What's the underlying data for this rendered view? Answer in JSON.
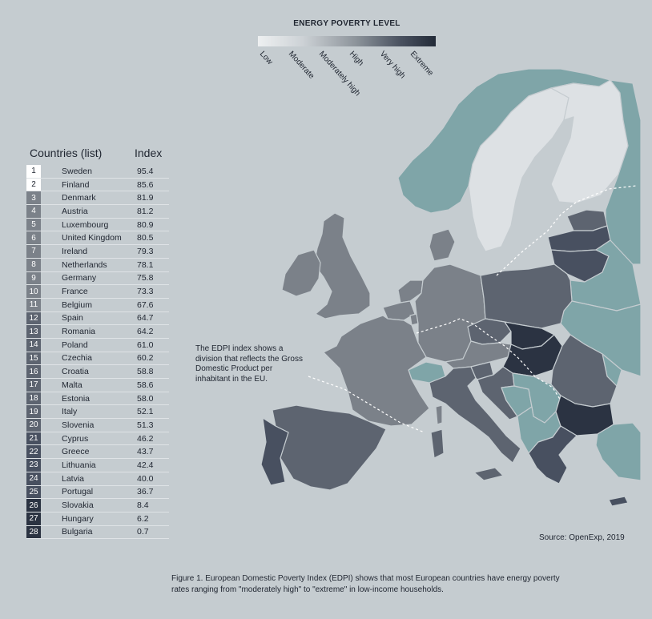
{
  "legend": {
    "title": "ENERGY POVERTY LEVEL",
    "levels": [
      "Low",
      "Moderate",
      "Moderately high",
      "High",
      "Very high",
      "Extreme"
    ],
    "colors": [
      "#eef0f1",
      "#cdd2d6",
      "#8d949b",
      "#6b7480",
      "#4a5260",
      "#232b38"
    ]
  },
  "table": {
    "header_countries": "Countries (list)",
    "header_index": "Index",
    "rows": [
      {
        "rank": "1",
        "country": "Sweden",
        "index": "95.4",
        "level": "low"
      },
      {
        "rank": "2",
        "country": "Finland",
        "index": "85.6",
        "level": "low"
      },
      {
        "rank": "3",
        "country": "Denmark",
        "index": "81.9",
        "level": "moderately-high"
      },
      {
        "rank": "4",
        "country": "Austria",
        "index": "81.2",
        "level": "moderately-high"
      },
      {
        "rank": "5",
        "country": "Luxembourg",
        "index": "80.9",
        "level": "moderately-high"
      },
      {
        "rank": "6",
        "country": "United Kingdom",
        "index": "80.5",
        "level": "moderately-high"
      },
      {
        "rank": "7",
        "country": "Ireland",
        "index": "79.3",
        "level": "moderately-high"
      },
      {
        "rank": "8",
        "country": "Netherlands",
        "index": "78.1",
        "level": "moderately-high"
      },
      {
        "rank": "9",
        "country": "Germany",
        "index": "75.8",
        "level": "moderately-high"
      },
      {
        "rank": "10",
        "country": "France",
        "index": "73.3",
        "level": "moderately-high"
      },
      {
        "rank": "11",
        "country": "Belgium",
        "index": "67.6",
        "level": "moderately-high"
      },
      {
        "rank": "12",
        "country": "Spain",
        "index": "64.7",
        "level": "high"
      },
      {
        "rank": "13",
        "country": "Romania",
        "index": "64.2",
        "level": "high"
      },
      {
        "rank": "14",
        "country": "Poland",
        "index": "61.0",
        "level": "high"
      },
      {
        "rank": "15",
        "country": "Czechia",
        "index": "60.2",
        "level": "high"
      },
      {
        "rank": "16",
        "country": "Croatia",
        "index": "58.8",
        "level": "high"
      },
      {
        "rank": "17",
        "country": "Malta",
        "index": "58.6",
        "level": "high"
      },
      {
        "rank": "18",
        "country": "Estonia",
        "index": "58.0",
        "level": "high"
      },
      {
        "rank": "19",
        "country": "Italy",
        "index": "52.1",
        "level": "high"
      },
      {
        "rank": "20",
        "country": "Slovenia",
        "index": "51.3",
        "level": "high"
      },
      {
        "rank": "21",
        "country": "Cyprus",
        "index": "46.2",
        "level": "very-high"
      },
      {
        "rank": "22",
        "country": "Greece",
        "index": "43.7",
        "level": "very-high"
      },
      {
        "rank": "23",
        "country": "Lithuania",
        "index": "42.4",
        "level": "very-high"
      },
      {
        "rank": "24",
        "country": "Latvia",
        "index": "40.0",
        "level": "very-high"
      },
      {
        "rank": "25",
        "country": "Portugal",
        "index": "36.7",
        "level": "very-high"
      },
      {
        "rank": "26",
        "country": "Slovakia",
        "index": "8.4",
        "level": "extreme"
      },
      {
        "rank": "27",
        "country": "Hungary",
        "index": "6.2",
        "level": "extreme"
      },
      {
        "rank": "28",
        "country": "Bulgaria",
        "index": "0.7",
        "level": "extreme"
      }
    ]
  },
  "map": {
    "colors": {
      "background": "#c5ccd0",
      "non_eu": "#7fa5a8",
      "low": "#dde1e4",
      "moderately_high": "#7b8189",
      "high": "#5d6470",
      "very_high": "#485060",
      "extreme": "#2b3342"
    }
  },
  "annotation": "The EDPI index shows a division that reflects the Gross Domestic Product per inhabitant in the EU.",
  "source": "Source: OpenExp, 2019",
  "caption": "Figure 1. European Domestic Poverty Index (EDPI) shows that most European countries have energy poverty rates ranging from \"moderately high\" to \"extreme\" in low-income households."
}
